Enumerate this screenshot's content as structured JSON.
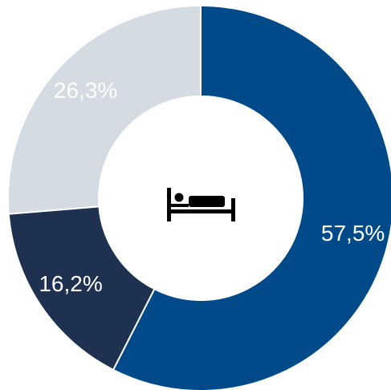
{
  "chart_data": {
    "type": "pie",
    "variant": "donut",
    "categories": [
      "",
      "",
      ""
    ],
    "values": [
      57.5,
      16.2,
      26.3
    ],
    "value_labels": [
      "57,5%",
      "16,2%",
      "26,3%"
    ],
    "colors": [
      "#004a8a",
      "#1f3150",
      "#d5dbe3"
    ],
    "label_colors": [
      "#ffffff",
      "#ffffff",
      "#ffffff"
    ],
    "start": "top",
    "direction": "clockwise",
    "center_icon": "bed-icon",
    "title": "",
    "legend": "none"
  }
}
